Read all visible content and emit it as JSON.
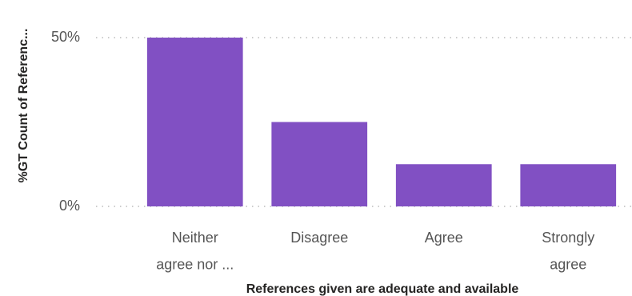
{
  "chart_data": {
    "type": "bar",
    "x_label": "References given are adequate and available",
    "y_label": "%GT Count of Referenc...",
    "categories": [
      "Neither agree nor ...",
      "Disagree",
      "Agree",
      "Strongly agree"
    ],
    "values": [
      50,
      25,
      12.5,
      12.5
    ],
    "color": "#8150c3",
    "ylim": [
      0,
      50
    ],
    "yticks": [
      {
        "value": 0,
        "label": "0%"
      },
      {
        "value": 50,
        "label": "50%"
      }
    ],
    "grid": true
  }
}
